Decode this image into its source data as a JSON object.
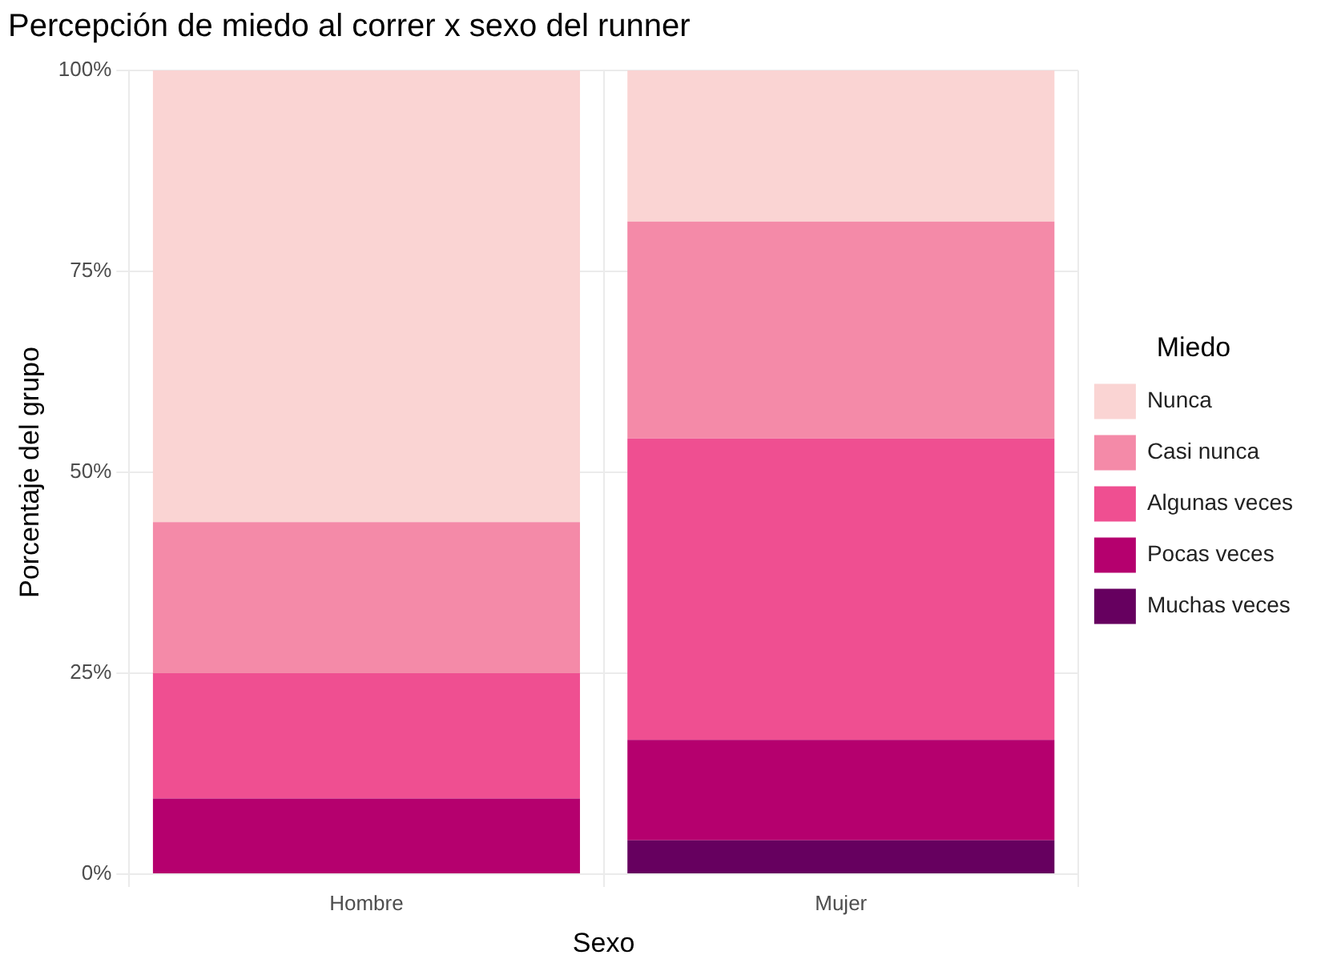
{
  "chart_data": {
    "type": "bar",
    "title": "Percepción de miedo al correr x sexo del runner",
    "xlabel": "Sexo",
    "ylabel": "Porcentaje del grupo",
    "legend_title": "Miedo",
    "categories": [
      "Hombre",
      "Mujer"
    ],
    "stacked": true,
    "series": [
      {
        "name": "Muchas veces",
        "color": "#66005f",
        "values": [
          0,
          4.2
        ]
      },
      {
        "name": "Pocas veces",
        "color": "#b5006e",
        "values": [
          9.4,
          12.5
        ]
      },
      {
        "name": "Algunas veces",
        "color": "#ef4f91",
        "values": [
          15.6,
          37.5
        ]
      },
      {
        "name": "Casi nunca",
        "color": "#f48aa8",
        "values": [
          18.8,
          27
        ]
      },
      {
        "name": "Nunca",
        "color": "#fad4d3",
        "values": [
          56.2,
          18.8
        ]
      }
    ],
    "ylim": [
      0,
      100
    ],
    "yticks": [
      {
        "value": 0,
        "label": "0%"
      },
      {
        "value": 25,
        "label": "25%"
      },
      {
        "value": 50,
        "label": "50%"
      },
      {
        "value": 75,
        "label": "75%"
      },
      {
        "value": 100,
        "label": "100%"
      }
    ],
    "grid": true,
    "legend": "right"
  }
}
